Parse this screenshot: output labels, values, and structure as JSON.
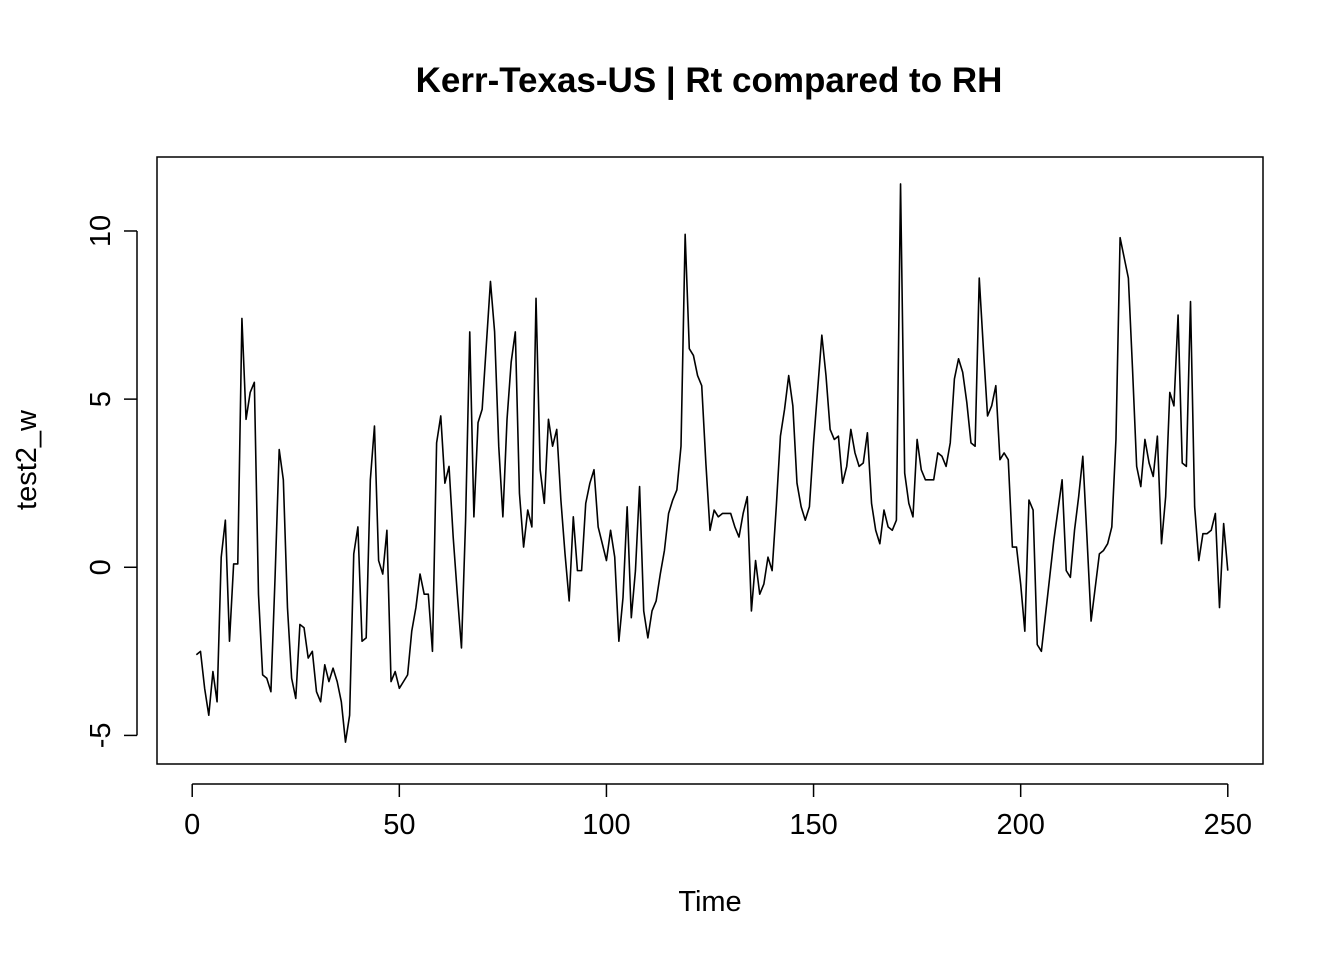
{
  "chart_data": {
    "type": "line",
    "title": "Kerr-Texas-US | Rt compared to RH",
    "xlabel": "Time",
    "ylabel": "test2_w",
    "xlim": [
      -8.5,
      258.5
    ],
    "ylim": [
      -5.85,
      12.2
    ],
    "x_ticks": [
      0,
      50,
      100,
      150,
      200,
      250
    ],
    "y_ticks": [
      -5,
      0,
      5,
      10
    ],
    "grid": false,
    "legend": "none",
    "line_color": "#000000",
    "x_start": 1,
    "values": [
      -2.6,
      -2.5,
      -3.6,
      -4.4,
      -3.1,
      -4.0,
      0.3,
      1.4,
      -2.2,
      0.1,
      0.1,
      7.4,
      4.4,
      5.2,
      5.5,
      -0.8,
      -3.2,
      -3.3,
      -3.7,
      -0.3,
      3.5,
      2.6,
      -1.2,
      -3.3,
      -3.9,
      -1.7,
      -1.8,
      -2.7,
      -2.5,
      -3.7,
      -4.0,
      -2.9,
      -3.4,
      -3.0,
      -3.4,
      -4.0,
      -5.2,
      -4.4,
      0.4,
      1.2,
      -2.2,
      -2.1,
      2.6,
      4.2,
      0.2,
      -0.2,
      1.1,
      -3.4,
      -3.1,
      -3.6,
      -3.4,
      -3.2,
      -1.9,
      -1.2,
      -0.2,
      -0.8,
      -0.8,
      -2.5,
      3.7,
      4.5,
      2.5,
      3.0,
      0.9,
      -0.8,
      -2.4,
      1.4,
      7.0,
      1.5,
      4.3,
      4.7,
      6.6,
      8.5,
      7.0,
      3.6,
      1.5,
      4.4,
      6.1,
      7.0,
      2.2,
      0.6,
      1.7,
      1.2,
      8.0,
      2.9,
      1.9,
      4.4,
      3.6,
      4.1,
      2.0,
      0.4,
      -1.0,
      1.5,
      -0.1,
      -0.1,
      1.9,
      2.5,
      2.9,
      1.2,
      0.7,
      0.2,
      1.1,
      0.3,
      -2.2,
      -0.9,
      1.8,
      -1.5,
      -0.1,
      2.4,
      -1.3,
      -2.1,
      -1.3,
      -1.0,
      -0.2,
      0.5,
      1.6,
      2.0,
      2.3,
      3.6,
      9.9,
      6.5,
      6.3,
      5.7,
      5.4,
      3.1,
      1.1,
      1.7,
      1.5,
      1.6,
      1.6,
      1.6,
      1.2,
      0.9,
      1.6,
      2.1,
      -1.3,
      0.2,
      -0.8,
      -0.5,
      0.3,
      -0.1,
      1.8,
      3.9,
      4.7,
      5.7,
      4.8,
      2.5,
      1.8,
      1.4,
      1.8,
      3.7,
      5.3,
      6.9,
      5.7,
      4.1,
      3.8,
      3.9,
      2.5,
      3.0,
      4.1,
      3.4,
      3.0,
      3.1,
      4.0,
      1.9,
      1.1,
      0.7,
      1.7,
      1.2,
      1.1,
      1.4,
      11.4,
      2.8,
      1.9,
      1.5,
      3.8,
      2.9,
      2.6,
      2.6,
      2.6,
      3.4,
      3.3,
      3.0,
      3.7,
      5.6,
      6.2,
      5.8,
      4.9,
      3.7,
      3.6,
      8.6,
      6.5,
      4.5,
      4.8,
      5.4,
      3.2,
      3.4,
      3.2,
      0.6,
      0.6,
      -0.5,
      -1.9,
      2.0,
      1.7,
      -2.3,
      -2.5,
      -1.4,
      -0.3,
      0.8,
      1.7,
      2.6,
      -0.1,
      -0.3,
      1.1,
      2.1,
      3.3,
      0.9,
      -1.6,
      -0.6,
      0.4,
      0.5,
      0.7,
      1.2,
      3.8,
      9.8,
      9.2,
      8.6,
      5.9,
      3.0,
      2.4,
      3.8,
      3.1,
      2.7,
      3.9,
      0.7,
      2.1,
      5.2,
      4.8,
      7.5,
      3.1,
      3.0,
      7.9,
      1.8,
      0.2,
      1.0,
      1.0,
      1.1,
      1.6,
      -1.2,
      1.3,
      -0.1
    ]
  }
}
